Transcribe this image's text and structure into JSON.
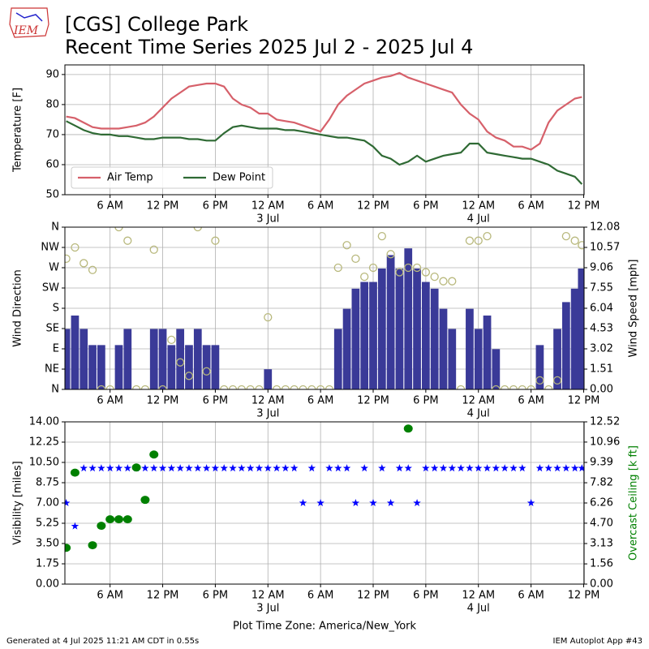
{
  "title": [
    "[CGS] College Park",
    "Recent Time Series 2025 Jul 2 - 2025 Jul 4"
  ],
  "logo_text": "IEM",
  "footer_left": "Generated at 4 Jul 2025 11:21 AM CDT in 0.55s",
  "footer_right": "IEM Autoplot App #43",
  "chart_data": [
    {
      "type": "line",
      "ylabel": "Temperature [F]",
      "x": [
        1,
        2,
        3,
        4,
        5,
        6,
        7,
        8,
        9,
        10,
        11,
        12,
        13,
        14,
        15,
        16,
        17,
        18,
        19,
        20,
        21,
        22,
        23,
        24,
        25,
        26,
        27,
        28,
        29,
        30,
        31,
        32,
        33,
        34,
        35,
        36,
        37,
        38,
        39,
        40,
        41,
        42,
        43,
        44,
        45,
        46,
        47,
        48,
        49,
        50,
        51,
        52,
        53,
        54,
        55,
        56,
        57,
        58,
        59,
        59.8
      ],
      "xlim": [
        0.85,
        60.05
      ],
      "xticks": [
        {
          "value": 6,
          "label": "6 AM"
        },
        {
          "value": 12,
          "label": "12 PM"
        },
        {
          "value": 18,
          "label": "6 PM"
        },
        {
          "value": 24,
          "label": "12 AM"
        },
        {
          "value": 30,
          "label": "6 AM"
        },
        {
          "value": 36,
          "label": "12 PM"
        },
        {
          "value": 42,
          "label": "6 PM"
        },
        {
          "value": 48,
          "label": "12 AM"
        },
        {
          "value": 54,
          "label": "6 AM"
        },
        {
          "value": 60,
          "label": "12 PM"
        }
      ],
      "xtick_dates": [
        {
          "value": 24,
          "label": "3 Jul"
        },
        {
          "value": 48,
          "label": "4 Jul"
        }
      ],
      "ylim": [
        50,
        93.2
      ],
      "yticks": [
        50,
        60,
        70,
        80,
        90
      ],
      "grid": true,
      "legend": "lower left",
      "series": [
        {
          "name": "Air Temp",
          "color": "#d6606a",
          "values": [
            76,
            75.5,
            74,
            72.5,
            72,
            72,
            72,
            72.5,
            73,
            74,
            76,
            79,
            82,
            84,
            86,
            86.5,
            87,
            87,
            86,
            82,
            80,
            79,
            77,
            77,
            75,
            74.5,
            74,
            73,
            72,
            71,
            75,
            80,
            83,
            85,
            87,
            88,
            89,
            89.5,
            90.5,
            89,
            88,
            87,
            86,
            85,
            84,
            80,
            77,
            75,
            71,
            69,
            68,
            66,
            66,
            65,
            67,
            74,
            78,
            80,
            82,
            82.5
          ]
        },
        {
          "name": "Dew Point",
          "color": "#2f6a34",
          "values": [
            74.5,
            73,
            71.5,
            70.5,
            70,
            70,
            69.5,
            69.5,
            69,
            68.5,
            68.5,
            69,
            69,
            69,
            68.5,
            68.5,
            68,
            68,
            70.5,
            72.5,
            73,
            72.5,
            72,
            72,
            72,
            71.5,
            71.5,
            71,
            70.5,
            70,
            69.5,
            69,
            69,
            68.5,
            68,
            66,
            63,
            62,
            60,
            61,
            63,
            61,
            62,
            63,
            63.5,
            64,
            67,
            67,
            64,
            63.5,
            63,
            62.5,
            62,
            62,
            61,
            60,
            58,
            57,
            56,
            53.5
          ]
        }
      ]
    },
    {
      "type": "wind",
      "ylabel": "Wind Direction",
      "y2label": "Wind Speed [mph]",
      "x": [
        1,
        2,
        3,
        4,
        5,
        6,
        7,
        8,
        9,
        10,
        11,
        12,
        13,
        14,
        15,
        16,
        17,
        18,
        19,
        20,
        21,
        22,
        23,
        24,
        25,
        26,
        27,
        28,
        29,
        30,
        31,
        32,
        33,
        34,
        35,
        36,
        37,
        38,
        39,
        40,
        41,
        42,
        43,
        44,
        45,
        46,
        47,
        48,
        49,
        50,
        51,
        52,
        53,
        54,
        55,
        56,
        57,
        58,
        59,
        59.8
      ],
      "xlim": [
        0.85,
        60.05
      ],
      "xticks": [
        {
          "value": 6,
          "label": "6 AM"
        },
        {
          "value": 12,
          "label": "12 PM"
        },
        {
          "value": 18,
          "label": "6 PM"
        },
        {
          "value": 24,
          "label": "12 AM"
        },
        {
          "value": 30,
          "label": "6 AM"
        },
        {
          "value": 36,
          "label": "12 PM"
        },
        {
          "value": 42,
          "label": "6 PM"
        },
        {
          "value": 48,
          "label": "12 AM"
        },
        {
          "value": 54,
          "label": "6 AM"
        },
        {
          "value": 60,
          "label": "12 PM"
        }
      ],
      "xtick_dates": [
        {
          "value": 24,
          "label": "3 Jul"
        },
        {
          "value": 48,
          "label": "4 Jul"
        }
      ],
      "ylim": [
        0,
        360
      ],
      "yticks": [
        {
          "value": 0,
          "label": "N"
        },
        {
          "value": 45,
          "label": "NE"
        },
        {
          "value": 90,
          "label": "E"
        },
        {
          "value": 135,
          "label": "SE"
        },
        {
          "value": 180,
          "label": "S"
        },
        {
          "value": 225,
          "label": "SW"
        },
        {
          "value": 270,
          "label": "W"
        },
        {
          "value": 315,
          "label": "NW"
        },
        {
          "value": 360,
          "label": "N"
        }
      ],
      "y2lim": [
        0,
        12.08
      ],
      "y2ticks": [
        {
          "value": 0,
          "label": "0.00"
        },
        1.51,
        3.02,
        4.53,
        6.04,
        7.55,
        9.06,
        10.57,
        12.08
      ],
      "grid": true,
      "series": [
        {
          "axis": "y2",
          "marker": "bar",
          "color": "#3a3a98",
          "values": [
            4.5,
            5.5,
            4.5,
            3.3,
            3.3,
            0,
            3.3,
            4.5,
            0,
            0,
            4.5,
            4.5,
            3.3,
            4.5,
            3.3,
            4.5,
            3.3,
            3.3,
            0,
            0,
            0,
            0,
            0,
            1.5,
            0,
            0,
            0,
            0,
            0,
            0,
            0,
            4.5,
            6,
            7.5,
            8,
            8,
            9,
            10,
            9,
            10.5,
            9,
            8,
            7.5,
            6,
            4.5,
            0,
            6,
            4.5,
            5.5,
            3,
            0,
            0,
            0,
            0,
            3.3,
            0,
            4.5,
            6.5,
            7.5,
            9
          ]
        },
        {
          "axis": "y",
          "marker": "open-circle",
          "color": "#b8b87c",
          "values": [
            290,
            315,
            280,
            265,
            0,
            0,
            360,
            330,
            0,
            0,
            310,
            0,
            110,
            60,
            30,
            360,
            40,
            330,
            0,
            0,
            0,
            0,
            0,
            160,
            0,
            0,
            0,
            0,
            0,
            0,
            0,
            270,
            320,
            290,
            250,
            270,
            340,
            300,
            260,
            270,
            270,
            260,
            250,
            240,
            240,
            0,
            330,
            330,
            340,
            0,
            0,
            0,
            0,
            0,
            20,
            0,
            20,
            340,
            330,
            320
          ]
        }
      ]
    },
    {
      "type": "scatter",
      "ylabel": "Visibility [miles]",
      "y2label": "Overcast Ceiling [k ft]",
      "y2label_color": "#008000",
      "xlabel": "Plot Time Zone: America/New_York",
      "x": [
        1,
        2,
        3,
        4,
        5,
        6,
        7,
        8,
        9,
        10,
        11,
        12,
        13,
        14,
        15,
        16,
        17,
        18,
        19,
        20,
        21,
        22,
        23,
        24,
        25,
        26,
        27,
        28,
        29,
        30,
        31,
        32,
        33,
        34,
        35,
        36,
        37,
        38,
        39,
        40,
        41,
        42,
        43,
        44,
        45,
        46,
        47,
        48,
        49,
        50,
        51,
        52,
        53,
        54,
        55,
        56,
        57,
        58,
        59,
        59.8
      ],
      "xlim": [
        0.85,
        60.05
      ],
      "xticks": [
        {
          "value": 6,
          "label": "6 AM"
        },
        {
          "value": 12,
          "label": "12 PM"
        },
        {
          "value": 18,
          "label": "6 PM"
        },
        {
          "value": 24,
          "label": "12 AM"
        },
        {
          "value": 30,
          "label": "6 AM"
        },
        {
          "value": 36,
          "label": "12 PM"
        },
        {
          "value": 42,
          "label": "6 PM"
        },
        {
          "value": 48,
          "label": "12 AM"
        },
        {
          "value": 54,
          "label": "6 AM"
        },
        {
          "value": 60,
          "label": "12 PM"
        }
      ],
      "xtick_dates": [
        {
          "value": 24,
          "label": "3 Jul"
        },
        {
          "value": 48,
          "label": "4 Jul"
        }
      ],
      "ylim": [
        0,
        14
      ],
      "yticks": [
        {
          "value": 0,
          "label": "0.00"
        },
        1.75,
        {
          "value": 3.5,
          "label": "3.50"
        },
        {
          "value": 5.25,
          "label": "5.25"
        },
        {
          "value": 7,
          "label": "7.00"
        },
        8.75,
        {
          "value": 10.5,
          "label": "10.50"
        },
        12.25,
        {
          "value": 14,
          "label": "14.00"
        }
      ],
      "y2lim": [
        0,
        12.52
      ],
      "y2ticks": [
        {
          "value": 0,
          "label": "0.00"
        },
        1.56,
        3.13,
        {
          "value": 4.7,
          "label": "4.70"
        },
        6.26,
        7.82,
        9.39,
        10.96,
        12.52
      ],
      "grid": true,
      "series": [
        {
          "axis": "y",
          "marker": "star",
          "color": "#0000ff",
          "values": [
            7,
            5,
            10,
            10,
            10,
            10,
            10,
            10,
            10,
            10,
            10,
            10,
            10,
            10,
            10,
            10,
            10,
            10,
            10,
            10,
            10,
            10,
            10,
            10,
            10,
            10,
            10,
            7,
            10,
            7,
            10,
            10,
            10,
            7,
            10,
            7,
            10,
            7,
            10,
            10,
            7,
            10,
            10,
            10,
            10,
            10,
            10,
            10,
            10,
            10,
            10,
            10,
            10,
            7,
            10,
            10,
            10,
            10,
            10,
            10
          ]
        },
        {
          "axis": "y2",
          "marker": "dot",
          "color": "#008000",
          "values": [
            2.8,
            8.6,
            null,
            3.0,
            4.5,
            5.0,
            5.0,
            5.0,
            9.0,
            6.5,
            10.0,
            null,
            null,
            null,
            null,
            null,
            null,
            null,
            null,
            null,
            null,
            null,
            null,
            null,
            null,
            null,
            null,
            null,
            null,
            null,
            null,
            null,
            null,
            null,
            null,
            null,
            null,
            null,
            null,
            12.0,
            null,
            null,
            null,
            null,
            null,
            null,
            null,
            null,
            null,
            null,
            null,
            null,
            null,
            null,
            null,
            null,
            null,
            null,
            null,
            null
          ]
        }
      ]
    }
  ]
}
